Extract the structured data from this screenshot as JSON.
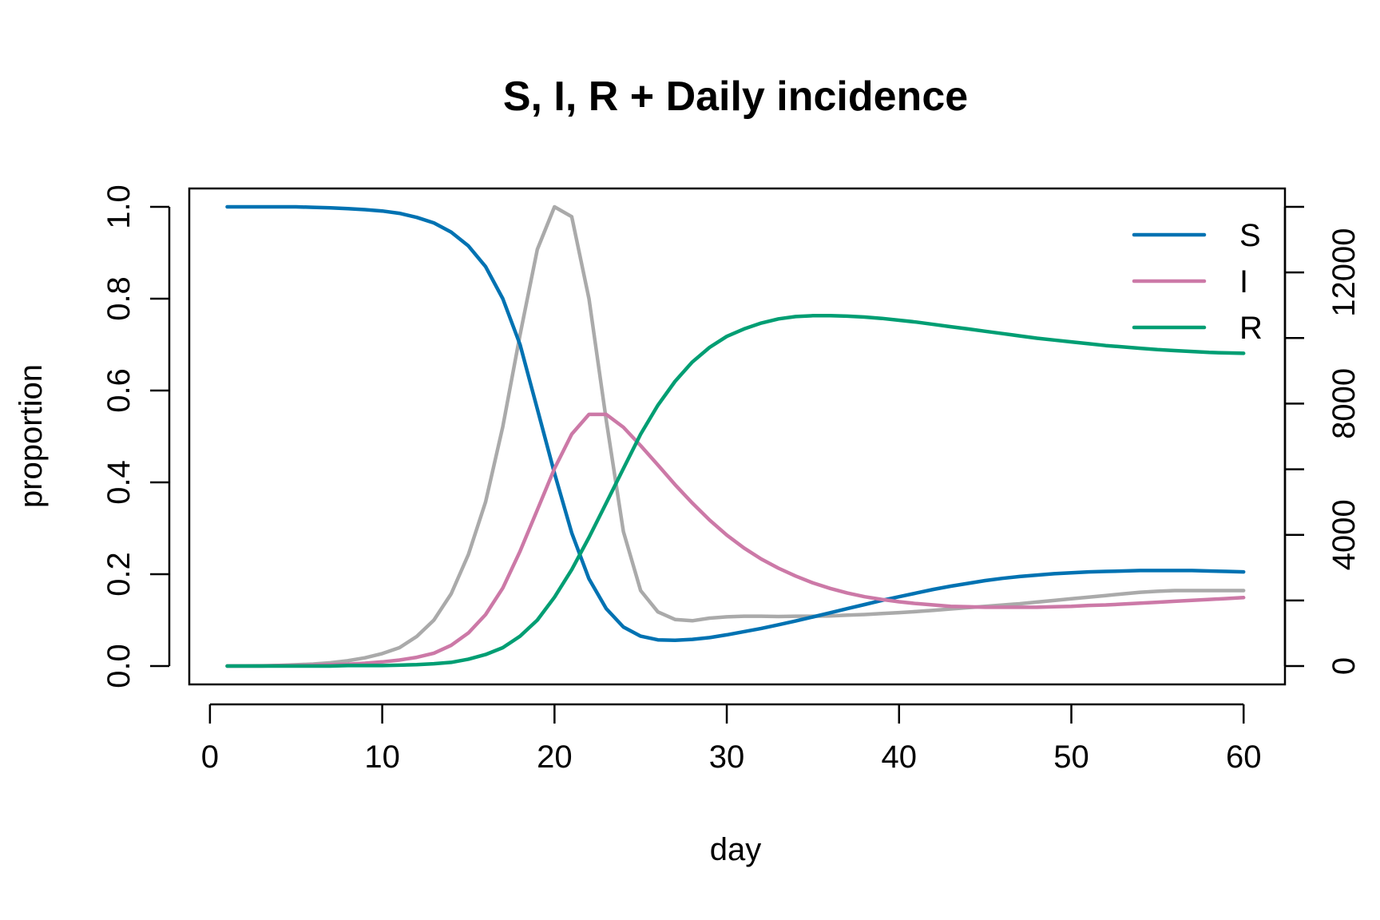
{
  "chart_data": {
    "type": "line",
    "title": "S, I, R + Daily incidence",
    "xlabel": "day",
    "ylabel": "proportion",
    "x_ticks": [
      0,
      10,
      20,
      30,
      40,
      50,
      60
    ],
    "y_ticks": [
      0.0,
      0.2,
      0.4,
      0.6,
      0.8,
      1.0
    ],
    "y_tick_labels": [
      "0.0",
      "0.2",
      "0.4",
      "0.6",
      "0.8",
      "1.0"
    ],
    "y2_ticks": [
      0,
      4000,
      8000,
      12000
    ],
    "y2_tick_labels": [
      "0",
      "4000",
      "8000",
      "12000"
    ],
    "y2_minor_ticks": [
      2000,
      6000,
      10000,
      14000
    ],
    "xlim": [
      -1.2,
      62.4
    ],
    "ylim": [
      -0.04,
      1.04
    ],
    "y2lim": [
      -560,
      14560
    ],
    "x": [
      1,
      2,
      3,
      4,
      5,
      6,
      7,
      8,
      9,
      10,
      11,
      12,
      13,
      14,
      15,
      16,
      17,
      18,
      19,
      20,
      21,
      22,
      23,
      24,
      25,
      26,
      27,
      28,
      29,
      30,
      31,
      32,
      33,
      34,
      35,
      36,
      37,
      38,
      39,
      40,
      41,
      42,
      43,
      44,
      45,
      46,
      47,
      48,
      49,
      50,
      51,
      52,
      53,
      54,
      55,
      56,
      57,
      58,
      59,
      60
    ],
    "legend": {
      "position": "top-right",
      "entries": [
        "S",
        "I",
        "R"
      ]
    },
    "series": [
      {
        "name": "S",
        "color": "#0072B2",
        "axis": "left",
        "values": [
          1.0,
          1.0,
          1.0,
          1.0,
          1.0,
          0.999,
          0.998,
          0.996,
          0.994,
          0.991,
          0.986,
          0.977,
          0.965,
          0.945,
          0.915,
          0.87,
          0.8,
          0.7,
          0.56,
          0.42,
          0.29,
          0.19,
          0.125,
          0.085,
          0.065,
          0.057,
          0.056,
          0.058,
          0.062,
          0.068,
          0.075,
          0.082,
          0.09,
          0.098,
          0.107,
          0.116,
          0.125,
          0.134,
          0.143,
          0.151,
          0.159,
          0.167,
          0.174,
          0.18,
          0.186,
          0.191,
          0.195,
          0.198,
          0.201,
          0.203,
          0.205,
          0.206,
          0.207,
          0.208,
          0.208,
          0.208,
          0.208,
          0.207,
          0.206,
          0.205
        ]
      },
      {
        "name": "I",
        "color": "#CC79A7",
        "axis": "left",
        "values": [
          0.0,
          0.0,
          0.0,
          0.001,
          0.001,
          0.002,
          0.003,
          0.004,
          0.006,
          0.009,
          0.013,
          0.019,
          0.028,
          0.045,
          0.072,
          0.112,
          0.17,
          0.25,
          0.34,
          0.43,
          0.505,
          0.548,
          0.548,
          0.52,
          0.48,
          0.438,
          0.395,
          0.355,
          0.318,
          0.285,
          0.257,
          0.233,
          0.213,
          0.196,
          0.181,
          0.169,
          0.159,
          0.151,
          0.145,
          0.14,
          0.136,
          0.133,
          0.13,
          0.129,
          0.128,
          0.128,
          0.128,
          0.128,
          0.129,
          0.13,
          0.132,
          0.133,
          0.135,
          0.137,
          0.139,
          0.141,
          0.143,
          0.145,
          0.147,
          0.149
        ]
      },
      {
        "name": "R",
        "color": "#009E73",
        "axis": "left",
        "values": [
          0.0,
          0.0,
          0.0,
          0.0,
          0.0,
          0.0,
          0.0,
          0.001,
          0.001,
          0.001,
          0.002,
          0.003,
          0.005,
          0.008,
          0.015,
          0.025,
          0.04,
          0.065,
          0.1,
          0.15,
          0.21,
          0.28,
          0.355,
          0.43,
          0.505,
          0.568,
          0.62,
          0.662,
          0.694,
          0.718,
          0.734,
          0.747,
          0.756,
          0.761,
          0.763,
          0.763,
          0.762,
          0.76,
          0.757,
          0.753,
          0.749,
          0.744,
          0.739,
          0.734,
          0.729,
          0.724,
          0.719,
          0.714,
          0.71,
          0.706,
          0.702,
          0.698,
          0.695,
          0.692,
          0.689,
          0.687,
          0.685,
          0.683,
          0.682,
          0.681
        ]
      },
      {
        "name": "",
        "color": "#AAAAAA",
        "axis": "right",
        "values": [
          0,
          5,
          10,
          20,
          40,
          60,
          100,
          160,
          250,
          380,
          560,
          900,
          1400,
          2200,
          3400,
          5000,
          7300,
          10100,
          12700,
          14000,
          13700,
          11200,
          7500,
          4100,
          2300,
          1650,
          1420,
          1380,
          1460,
          1500,
          1520,
          1520,
          1510,
          1520,
          1520,
          1530,
          1550,
          1570,
          1600,
          1630,
          1660,
          1700,
          1740,
          1780,
          1820,
          1860,
          1900,
          1950,
          2000,
          2050,
          2100,
          2150,
          2200,
          2250,
          2280,
          2300,
          2300,
          2300,
          2300,
          2300
        ]
      }
    ]
  }
}
